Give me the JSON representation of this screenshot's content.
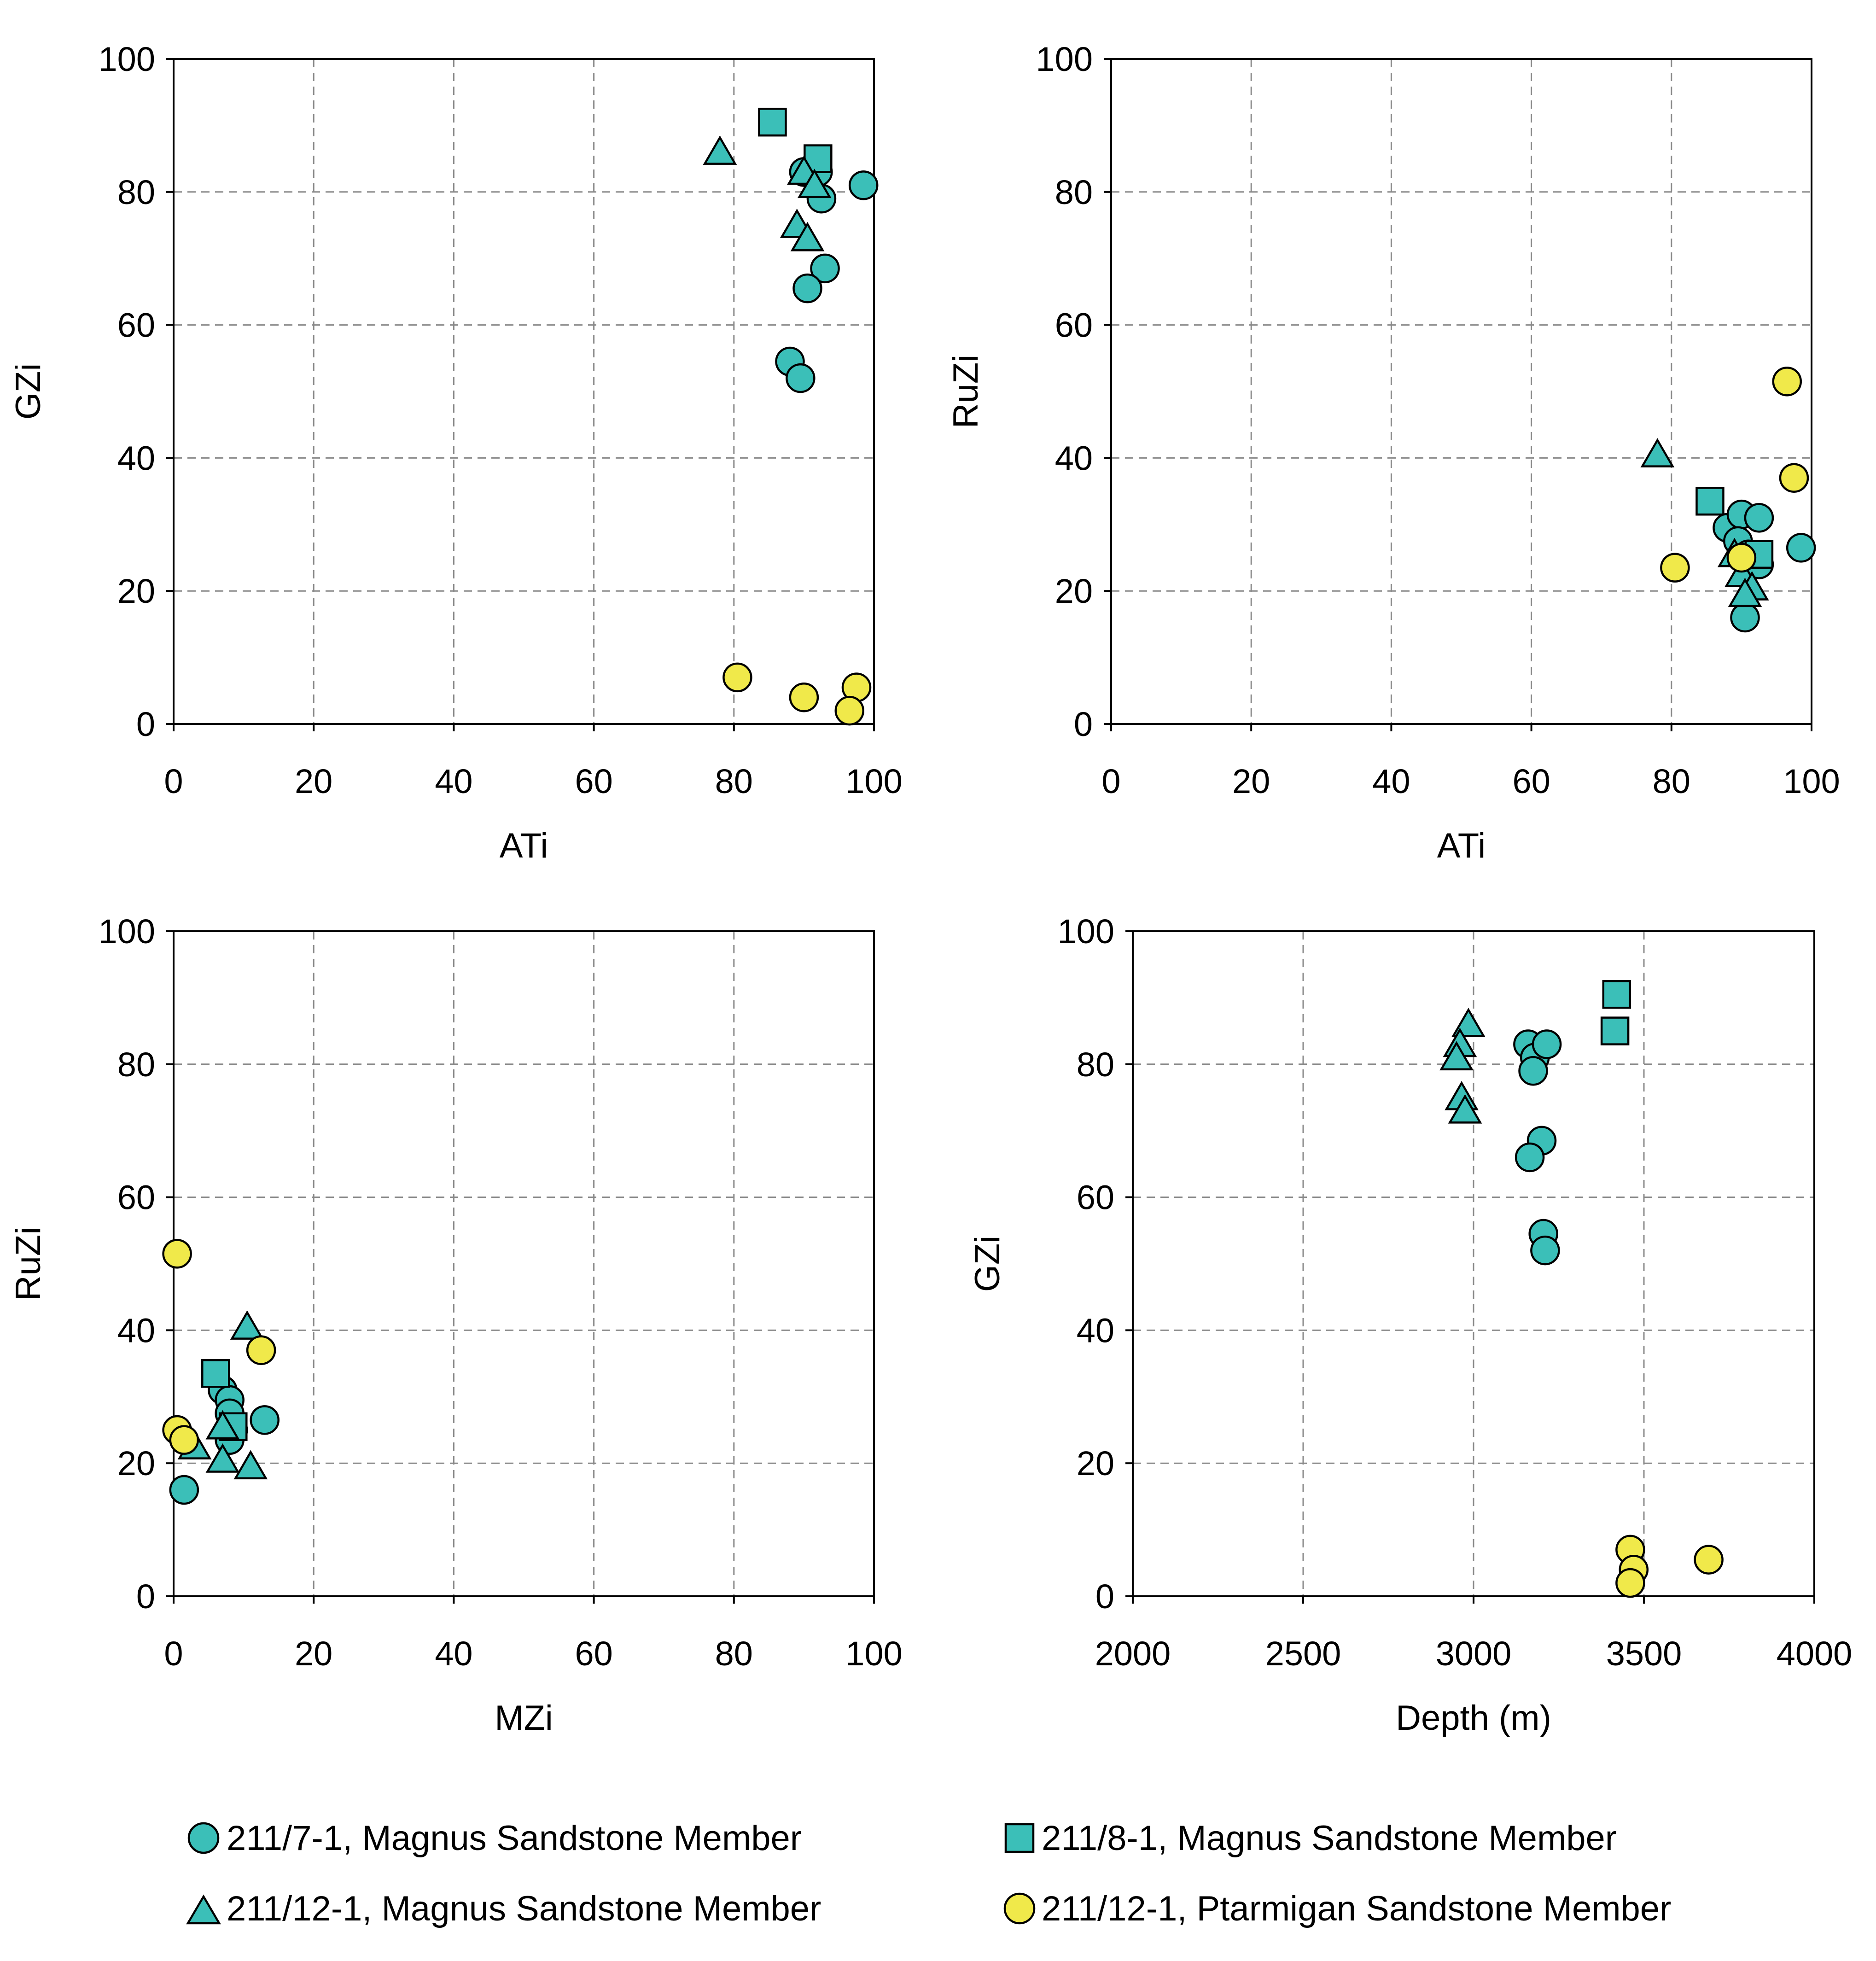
{
  "colors": {
    "teal": "#3bbfb8",
    "yellow": "#f0e94a",
    "outline": "#000000",
    "grid": "#8a8a8a"
  },
  "legend": [
    {
      "series_id": "s7",
      "marker": "circle",
      "color": "#3bbfb8",
      "label": "211/7-1, Magnus Sandstone Member"
    },
    {
      "series_id": "s8",
      "marker": "square",
      "color": "#3bbfb8",
      "label": "211/8-1, Magnus Sandstone Member"
    },
    {
      "series_id": "s12m",
      "marker": "triangle",
      "color": "#3bbfb8",
      "label": "211/12-1, Magnus Sandstone Member"
    },
    {
      "series_id": "s12p",
      "marker": "circle",
      "color": "#f0e94a",
      "label": "211/12-1, Ptarmigan Sandstone Member"
    }
  ],
  "chart_data": [
    {
      "type": "scatter",
      "id": "ati-gzi",
      "xlabel": "ATi",
      "ylabel": "GZi",
      "xlim": [
        0,
        100
      ],
      "ylim": [
        0,
        100
      ],
      "xticks": [
        "0",
        "20",
        "40",
        "60",
        "80",
        "100"
      ],
      "yticks": [
        "0",
        "20",
        "40",
        "60",
        "80",
        "100"
      ],
      "grid": true,
      "series": [
        {
          "series_id": "s7",
          "name": "211/7-1, Magnus Sandstone Member",
          "marker": "circle",
          "color": "#3bbfb8",
          "points": [
            [
              90,
              83
            ],
            [
              92,
              83
            ],
            [
              92.5,
              79
            ],
            [
              98.5,
              81
            ],
            [
              93,
              68.5
            ],
            [
              90.5,
              65.5
            ],
            [
              88,
              54.5
            ],
            [
              89.5,
              52
            ]
          ]
        },
        {
          "series_id": "s8",
          "name": "211/8-1, Magnus Sandstone Member",
          "marker": "square",
          "color": "#3bbfb8",
          "points": [
            [
              85.5,
              90.5
            ],
            [
              92,
              85
            ]
          ]
        },
        {
          "series_id": "s12m",
          "name": "211/12-1, Magnus Sandstone Member",
          "marker": "triangle",
          "color": "#3bbfb8",
          "points": [
            [
              78,
              86
            ],
            [
              90,
              83
            ],
            [
              91.5,
              81
            ],
            [
              89,
              75
            ],
            [
              90.5,
              73
            ]
          ]
        },
        {
          "series_id": "s12p",
          "name": "211/12-1, Ptarmigan Sandstone Member",
          "marker": "circle",
          "color": "#f0e94a",
          "points": [
            [
              80.5,
              7
            ],
            [
              90,
              4
            ],
            [
              97.5,
              5.5
            ],
            [
              96.5,
              2
            ]
          ]
        }
      ]
    },
    {
      "type": "scatter",
      "id": "ati-ruzi",
      "xlabel": "ATi",
      "ylabel": "RuZi",
      "xlim": [
        0,
        100
      ],
      "ylim": [
        0,
        100
      ],
      "xticks": [
        "0",
        "20",
        "40",
        "60",
        "80",
        "100"
      ],
      "yticks": [
        "0",
        "20",
        "40",
        "60",
        "80",
        "100"
      ],
      "grid": true,
      "series": [
        {
          "series_id": "s7",
          "name": "211/7-1, Magnus Sandstone Member",
          "marker": "circle",
          "color": "#3bbfb8",
          "points": [
            [
              88,
              29.5
            ],
            [
              90,
              31.5
            ],
            [
              92.5,
              31
            ],
            [
              89.5,
              27.5
            ],
            [
              91,
              25.5
            ],
            [
              92.5,
              24
            ],
            [
              98.5,
              26.5
            ],
            [
              90.5,
              16
            ]
          ]
        },
        {
          "series_id": "s8",
          "name": "211/8-1, Magnus Sandstone Member",
          "marker": "square",
          "color": "#3bbfb8",
          "points": [
            [
              85.5,
              33.5
            ],
            [
              92.5,
              25.5
            ]
          ]
        },
        {
          "series_id": "s12m",
          "name": "211/12-1, Magnus Sandstone Member",
          "marker": "triangle",
          "color": "#3bbfb8",
          "points": [
            [
              78,
              40.5
            ],
            [
              89,
              25.5
            ],
            [
              90,
              22.5
            ],
            [
              91.5,
              20.5
            ],
            [
              90.5,
              19.5
            ]
          ]
        },
        {
          "series_id": "s12p",
          "name": "211/12-1, Ptarmigan Sandstone Member",
          "marker": "circle",
          "color": "#f0e94a",
          "points": [
            [
              96.5,
              51.5
            ],
            [
              97.5,
              37
            ],
            [
              80.5,
              23.5
            ],
            [
              90,
              25
            ]
          ]
        }
      ]
    },
    {
      "type": "scatter",
      "id": "mzi-ruzi",
      "xlabel": "MZi",
      "ylabel": "RuZi",
      "xlim": [
        0,
        100
      ],
      "ylim": [
        0,
        100
      ],
      "xticks": [
        "0",
        "20",
        "40",
        "60",
        "80",
        "100"
      ],
      "yticks": [
        "0",
        "20",
        "40",
        "60",
        "80",
        "100"
      ],
      "grid": true,
      "series": [
        {
          "series_id": "s7",
          "name": "211/7-1, Magnus Sandstone Member",
          "marker": "circle",
          "color": "#3bbfb8",
          "points": [
            [
              7,
              31
            ],
            [
              8,
              29.5
            ],
            [
              8,
              27.5
            ],
            [
              8.5,
              25
            ],
            [
              8,
              23.5
            ],
            [
              13,
              26.5
            ],
            [
              1.5,
              16
            ]
          ]
        },
        {
          "series_id": "s8",
          "name": "211/8-1, Magnus Sandstone Member",
          "marker": "square",
          "color": "#3bbfb8",
          "points": [
            [
              6,
              33.5
            ],
            [
              8.5,
              25.5
            ]
          ]
        },
        {
          "series_id": "s12m",
          "name": "211/12-1, Magnus Sandstone Member",
          "marker": "triangle",
          "color": "#3bbfb8",
          "points": [
            [
              10.5,
              40.5
            ],
            [
              7,
              25.5
            ],
            [
              3,
              22.5
            ],
            [
              7,
              20.5
            ],
            [
              11,
              19.5
            ]
          ]
        },
        {
          "series_id": "s12p",
          "name": "211/12-1, Ptarmigan Sandstone Member",
          "marker": "circle",
          "color": "#f0e94a",
          "points": [
            [
              0.5,
              51.5
            ],
            [
              12.5,
              37
            ],
            [
              0.5,
              25
            ],
            [
              1.5,
              23.5
            ]
          ]
        }
      ]
    },
    {
      "type": "scatter",
      "id": "depth-gzi",
      "xlabel": "Depth (m)",
      "ylabel": "GZi",
      "xlim": [
        2000,
        4000
      ],
      "ylim": [
        0,
        100
      ],
      "xticks": [
        "2000",
        "2500",
        "3000",
        "3500",
        "4000"
      ],
      "yticks": [
        "0",
        "20",
        "40",
        "60",
        "80",
        "100"
      ],
      "grid": true,
      "series": [
        {
          "series_id": "s7",
          "name": "211/7-1, Magnus Sandstone Member",
          "marker": "circle",
          "color": "#3bbfb8",
          "points": [
            [
              3160,
              83
            ],
            [
              3180,
              81
            ],
            [
              3175,
              79
            ],
            [
              3215,
              83
            ],
            [
              3200,
              68.5
            ],
            [
              3165,
              66
            ],
            [
              3205,
              54.5
            ],
            [
              3210,
              52
            ]
          ]
        },
        {
          "series_id": "s8",
          "name": "211/8-1, Magnus Sandstone Member",
          "marker": "square",
          "color": "#3bbfb8",
          "points": [
            [
              3420,
              90.5
            ],
            [
              3415,
              85
            ]
          ]
        },
        {
          "series_id": "s12m",
          "name": "211/12-1, Magnus Sandstone Member",
          "marker": "triangle",
          "color": "#3bbfb8",
          "points": [
            [
              2985,
              86
            ],
            [
              2960,
              83
            ],
            [
              2950,
              81
            ],
            [
              2965,
              75
            ],
            [
              2975,
              73
            ]
          ]
        },
        {
          "series_id": "s12p",
          "name": "211/12-1, Ptarmigan Sandstone Member",
          "marker": "circle",
          "color": "#f0e94a",
          "points": [
            [
              3460,
              7
            ],
            [
              3470,
              4
            ],
            [
              3690,
              5.5
            ],
            [
              3460,
              2
            ]
          ]
        }
      ]
    }
  ]
}
